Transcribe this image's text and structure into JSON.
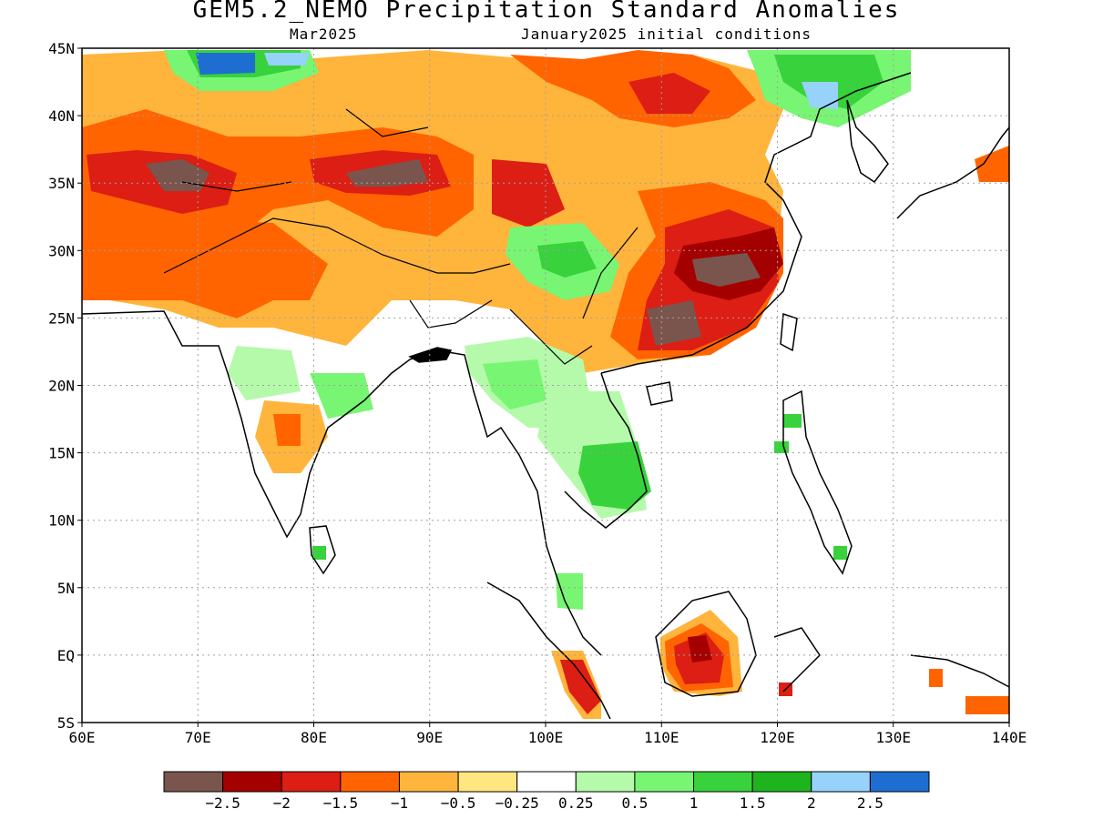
{
  "header": {
    "title": "GEM5.2_NEMO Precipitation Standard Anomalies",
    "valid_month": "Mar2025",
    "init_conditions": "January2025 initial conditions"
  },
  "axes": {
    "lon_ticks": [
      "60E",
      "70E",
      "80E",
      "90E",
      "100E",
      "110E",
      "120E",
      "130E",
      "140E"
    ],
    "lat_ticks": [
      "45N",
      "40N",
      "35N",
      "30N",
      "25N",
      "20N",
      "15N",
      "10N",
      "5N",
      "EQ",
      "5S"
    ],
    "lon_range": [
      60,
      140
    ],
    "lat_range": [
      -5,
      45
    ],
    "grid": "dotted"
  },
  "colorbar": {
    "colors": [
      "#7a554d",
      "#a50000",
      "#dc1e14",
      "#ff6400",
      "#ffb43c",
      "#ffe680",
      "#ffffff",
      "#b4faaa",
      "#78f573",
      "#37d23c",
      "#1eb41e",
      "#96d2fa",
      "#1e6ed2"
    ],
    "labels": [
      "−2.5",
      "−2",
      "−1.5",
      "−1",
      "−0.5",
      "−0.25",
      "0.25",
      "0.5",
      "1",
      "1.5",
      "2",
      "2.5"
    ]
  },
  "colors": {
    "land_outline": "#000000",
    "grid": "#a0a0a0"
  }
}
